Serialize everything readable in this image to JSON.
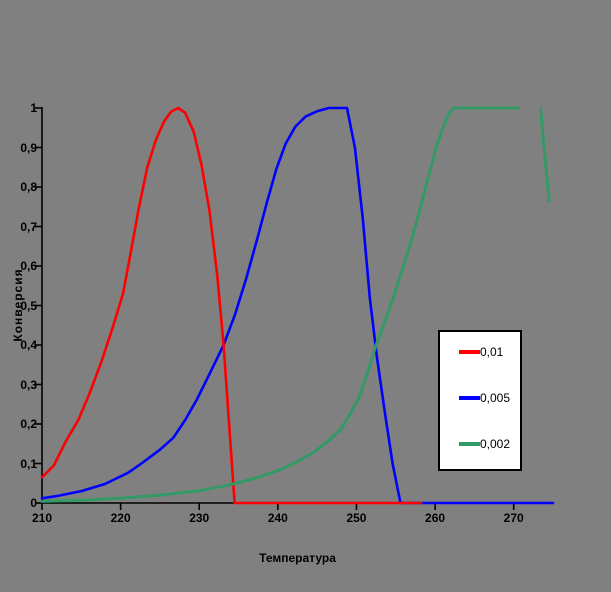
{
  "background_color": "#808080",
  "chart_data": {
    "type": "line",
    "title": "",
    "xlabel": "Температура",
    "ylabel": "Конверсия",
    "xlim": [
      210,
      275
    ],
    "ylim": [
      0,
      1
    ],
    "grid": false,
    "axis_color": "#000000",
    "legend": {
      "position": "center-right",
      "bg": "#ffffff",
      "border": "#000000"
    },
    "x_ticks": [
      {
        "v": 210,
        "label": "210"
      },
      {
        "v": 220,
        "label": "220"
      },
      {
        "v": 230,
        "label": "230"
      },
      {
        "v": 240,
        "label": "240"
      },
      {
        "v": 250,
        "label": "250"
      },
      {
        "v": 260,
        "label": "260"
      },
      {
        "v": 270,
        "label": "270"
      }
    ],
    "y_ticks": [
      {
        "v": 0,
        "label": "0"
      },
      {
        "v": 0.1,
        "label": "0,1"
      },
      {
        "v": 0.2,
        "label": "0,2"
      },
      {
        "v": 0.3,
        "label": "0,3"
      },
      {
        "v": 0.4,
        "label": "0,4"
      },
      {
        "v": 0.5,
        "label": "0,5"
      },
      {
        "v": 0.6,
        "label": "0,6"
      },
      {
        "v": 0.7,
        "label": "0,7"
      },
      {
        "v": 0.8,
        "label": "0,8"
      },
      {
        "v": 0.9,
        "label": "0,9"
      },
      {
        "v": 1,
        "label": "1"
      }
    ],
    "series": [
      {
        "name": "0,01",
        "color": "#ff0000",
        "stroke_width": 2.6,
        "segments": [
          [
            [
              210,
              0.065
            ],
            [
              211.5,
              0.095
            ],
            [
              213,
              0.155
            ],
            [
              214.6,
              0.21
            ],
            [
              216,
              0.275
            ],
            [
              217.6,
              0.36
            ],
            [
              219,
              0.445
            ],
            [
              220.3,
              0.53
            ],
            [
              221.3,
              0.635
            ],
            [
              222.3,
              0.745
            ],
            [
              223.4,
              0.85
            ],
            [
              224.5,
              0.92
            ],
            [
              225.5,
              0.965
            ],
            [
              226.4,
              0.99
            ],
            [
              227.3,
              1
            ],
            [
              228.2,
              0.988
            ],
            [
              229.3,
              0.94
            ],
            [
              230.3,
              0.855
            ],
            [
              231.3,
              0.74
            ],
            [
              232.3,
              0.575
            ],
            [
              233.1,
              0.4
            ],
            [
              233.8,
              0.2
            ],
            [
              234.5,
              0
            ],
            [
              258.2,
              0
            ]
          ]
        ]
      },
      {
        "name": "0,005",
        "color": "#0000ff",
        "stroke_width": 2.6,
        "segments": [
          [
            [
              210,
              0.012
            ],
            [
              212,
              0.018
            ],
            [
              215,
              0.03
            ],
            [
              218,
              0.048
            ],
            [
              221,
              0.077
            ],
            [
              223,
              0.105
            ],
            [
              225,
              0.135
            ],
            [
              226.7,
              0.165
            ],
            [
              228.2,
              0.21
            ],
            [
              229.7,
              0.262
            ],
            [
              231.4,
              0.33
            ],
            [
              233.1,
              0.4
            ],
            [
              234.6,
              0.48
            ],
            [
              236,
              0.57
            ],
            [
              237.4,
              0.67
            ],
            [
              238.6,
              0.76
            ],
            [
              239.8,
              0.845
            ],
            [
              241,
              0.91
            ],
            [
              242.2,
              0.952
            ],
            [
              243.5,
              0.978
            ],
            [
              245,
              0.992
            ],
            [
              246.5,
              1
            ],
            [
              248.8,
              1
            ],
            [
              249.8,
              0.9
            ],
            [
              250.8,
              0.72
            ],
            [
              251.7,
              0.52
            ],
            [
              252.6,
              0.37
            ],
            [
              253.6,
              0.23
            ],
            [
              254.6,
              0.1
            ],
            [
              255.6,
              0
            ],
            [
              275,
              0
            ]
          ]
        ]
      },
      {
        "name": "0,002",
        "color": "#339966",
        "stroke_width": 3,
        "segments": [
          [
            [
              210,
              0.004
            ],
            [
              215,
              0.007
            ],
            [
              220,
              0.012
            ],
            [
              225,
              0.02
            ],
            [
              230,
              0.031
            ],
            [
              233.9,
              0.046
            ],
            [
              237,
              0.062
            ],
            [
              240.3,
              0.084
            ],
            [
              242.5,
              0.105
            ],
            [
              244.7,
              0.13
            ],
            [
              246.5,
              0.158
            ],
            [
              248,
              0.186
            ],
            [
              249.2,
              0.225
            ],
            [
              250.4,
              0.27
            ],
            [
              251.4,
              0.33
            ],
            [
              252.4,
              0.394
            ],
            [
              253.6,
              0.46
            ],
            [
              254.7,
              0.52
            ],
            [
              255.8,
              0.59
            ],
            [
              257,
              0.665
            ],
            [
              258.1,
              0.745
            ],
            [
              259.2,
              0.83
            ],
            [
              260,
              0.89
            ],
            [
              260.9,
              0.945
            ],
            [
              261.6,
              0.98
            ],
            [
              262.3,
              1
            ],
            [
              270.6,
              1
            ]
          ],
          [
            [
              273.4,
              1
            ],
            [
              274.5,
              0.765
            ]
          ]
        ]
      }
    ]
  }
}
